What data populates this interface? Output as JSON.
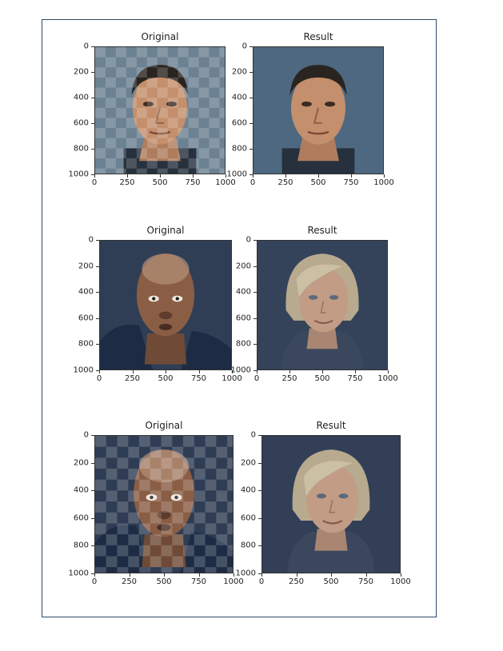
{
  "figure": {
    "panels": [
      {
        "id": "r1-original",
        "title": "Original",
        "style": "pixelated",
        "subject": "man-short-dark-hair",
        "bg": "#6c8292"
      },
      {
        "id": "r1-result",
        "title": "Result",
        "style": "smooth",
        "subject": "man-short-dark-hair",
        "bg": "#4d6880"
      },
      {
        "id": "r2-original",
        "title": "Original",
        "style": "smooth",
        "subject": "bald-man-dark-jacket",
        "bg": "#2f3e55"
      },
      {
        "id": "r2-result",
        "title": "Result",
        "style": "smooth",
        "subject": "blonde-woman",
        "bg": "#34435a"
      },
      {
        "id": "r3-original",
        "title": "Original",
        "style": "pixelated",
        "subject": "bald-man-dark-jacket",
        "bg": "#2f3d54"
      },
      {
        "id": "r3-result",
        "title": "Result",
        "style": "smooth",
        "subject": "blonde-woman",
        "bg": "#323f56"
      }
    ],
    "y_ticks": [
      "0",
      "200",
      "400",
      "600",
      "800",
      "1000"
    ],
    "x_ticks": [
      "0",
      "250",
      "500",
      "750",
      "1000"
    ]
  }
}
